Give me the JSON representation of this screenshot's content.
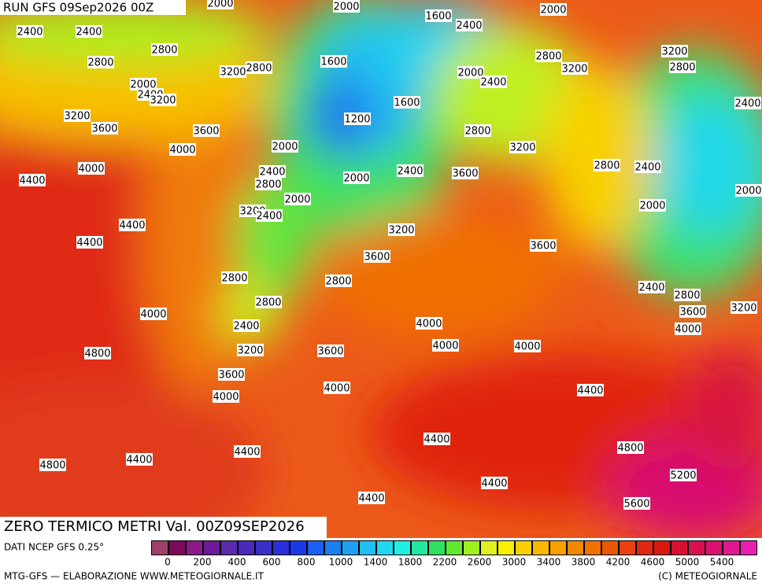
{
  "header": {
    "title": "RUN GFS 09Sep2026 00Z"
  },
  "contour_labels": [
    2000,
    2000,
    1600,
    2400,
    2000,
    2400,
    2400,
    2800,
    2800,
    3200,
    2800,
    1600,
    2800,
    3200,
    3200,
    2800,
    2000,
    2400,
    3200,
    2000,
    2400,
    1600,
    2400,
    3200,
    3600,
    1200,
    3600,
    2800,
    3200,
    4000,
    2000,
    4000,
    2400,
    2000,
    2400,
    3600,
    2800,
    2400,
    4400,
    2800,
    2000,
    2000,
    2000,
    3200,
    2400,
    4400,
    3200,
    4400,
    3600,
    3600,
    2800,
    2800,
    2400,
    2800,
    2800,
    3600,
    3200,
    4000,
    4000,
    2400,
    4000,
    4000,
    4000,
    3200,
    3600,
    4800,
    3600,
    4000,
    4400,
    4000,
    4400,
    4800,
    4400,
    4400,
    4800,
    5200,
    4400,
    4400,
    5600
  ],
  "footer": {
    "caption": "ZERO TERMICO METRI Val. 00Z09SEP2026",
    "source": "DATI NCEP GFS 0.25°",
    "credit": "MTG-GFS — ELABORAZIONE WWW.METEOGIORNALE.IT",
    "copyright": "(C) METEOGIORNALE"
  },
  "colorbar": {
    "colors": [
      "#a0406a",
      "#7a0a5a",
      "#8a1a8a",
      "#6a1a9a",
      "#5a2aaa",
      "#4a2ab8",
      "#3a30c8",
      "#2a30d8",
      "#1a3ae8",
      "#1a60f0",
      "#1a80f0",
      "#20a0f0",
      "#20c0f0",
      "#20d8f0",
      "#20f0e0",
      "#20e8a0",
      "#30e060",
      "#60e830",
      "#a0f020",
      "#e0f020",
      "#f8f000",
      "#f8d000",
      "#f8b800",
      "#f8a000",
      "#f08800",
      "#f07000",
      "#e85800",
      "#e84010",
      "#e02810",
      "#d81810",
      "#d81030",
      "#d81050",
      "#d81070",
      "#e01890",
      "#e820b0"
    ],
    "ticks": [
      0,
      200,
      400,
      600,
      800,
      1000,
      1400,
      1800,
      2200,
      2600,
      3000,
      3400,
      3800,
      4200,
      4600,
      5000,
      5400
    ]
  }
}
